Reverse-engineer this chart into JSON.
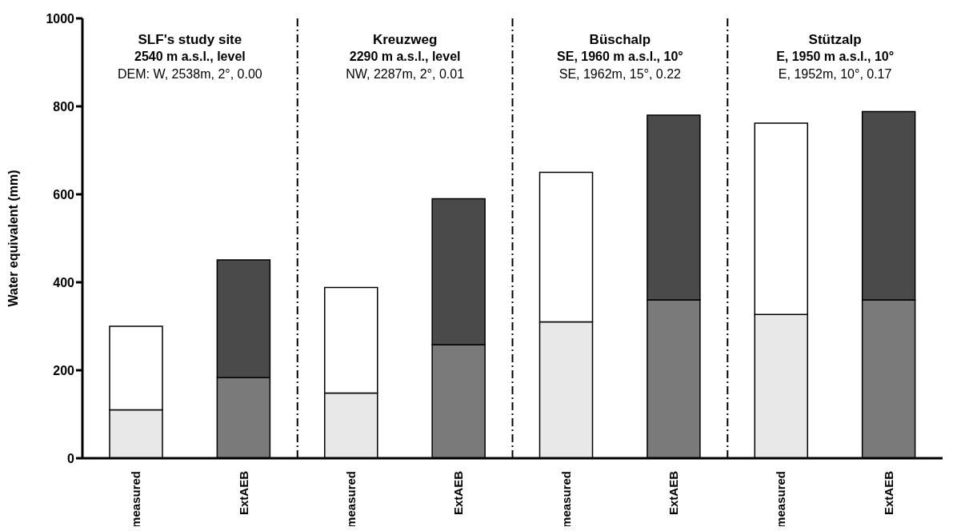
{
  "chart_data": {
    "type": "bar",
    "stacked": true,
    "ylabel": "Water equivalent (mm)",
    "categories": [
      "measured",
      "ExtAEB",
      "measured",
      "ExtAEB",
      "measured",
      "ExtAEB",
      "measured",
      "ExtAEB"
    ],
    "series": [
      {
        "colors": [
          "#e8e8e8",
          "#7a7a7a",
          "#e8e8e8",
          "#7a7a7a",
          "#e8e8e8",
          "#7a7a7a",
          "#e8e8e8",
          "#7a7a7a"
        ],
        "values": [
          110,
          183,
          148,
          258,
          310,
          360,
          327,
          360
        ]
      },
      {
        "colors": [
          "#ffffff",
          "#4a4a4a",
          "#ffffff",
          "#4a4a4a",
          "#ffffff",
          "#4a4a4a",
          "#ffffff",
          "#4a4a4a"
        ],
        "values": [
          190,
          268,
          240,
          332,
          340,
          420,
          435,
          428
        ]
      }
    ],
    "ylim": [
      0,
      1000
    ],
    "yticks": [
      0,
      200,
      400,
      600,
      800,
      1000
    ],
    "grid": false,
    "legend": false,
    "annotations": [
      "SLF's study site",
      "2540 m a.s.l., level",
      "DEM: W, 2538m, 2°, 0.00",
      "Kreuzweg",
      "2290 m a.s.l., level",
      "NW, 2287m, 2°, 0.01",
      "Büschalp",
      "SE, 1960 m a.s.l., 10°",
      "SE, 1962m, 15°, 0.22",
      "Stützalp",
      "E, 1950 m a.s.l., 10°",
      "E, 1952m, 10°, 0.17"
    ]
  }
}
